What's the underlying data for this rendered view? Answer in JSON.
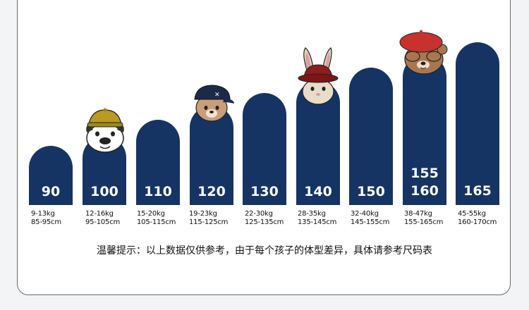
{
  "sizes": [
    {
      "label": "90",
      "weight": "9-13kg",
      "height": "85-95cm"
    },
    {
      "label": "100",
      "weight": "12-16kg",
      "height": "95-105cm"
    },
    {
      "label": "110",
      "weight": "15-20kg",
      "height": "105-115cm"
    },
    {
      "label": "120",
      "weight": "19-23kg",
      "height": "115-125cm"
    },
    {
      "label": "130",
      "weight": "22-30kg",
      "height": "125-135cm"
    },
    {
      "label": "140",
      "weight": "28-35kg",
      "height": "135-145cm"
    },
    {
      "label": "150",
      "weight": "32-40kg",
      "height": "145-155cm"
    },
    {
      "label": "160",
      "label_top": "155",
      "weight": "38-47kg",
      "height": "155-165cm"
    },
    {
      "label": "165",
      "weight": "45-55kg",
      "height": "160-170cm"
    }
  ],
  "tip_text": "温馨提示：以上数据仅供参考，由于每个孩子的体型差异，具体请参考尺码表",
  "colors": {
    "pillar": "#163463",
    "border": "#6b6b6b"
  },
  "mascots": [
    "bulldog-icon",
    "bear-cap-icon",
    "rabbit-hat-icon",
    "bear-beret-icon"
  ]
}
